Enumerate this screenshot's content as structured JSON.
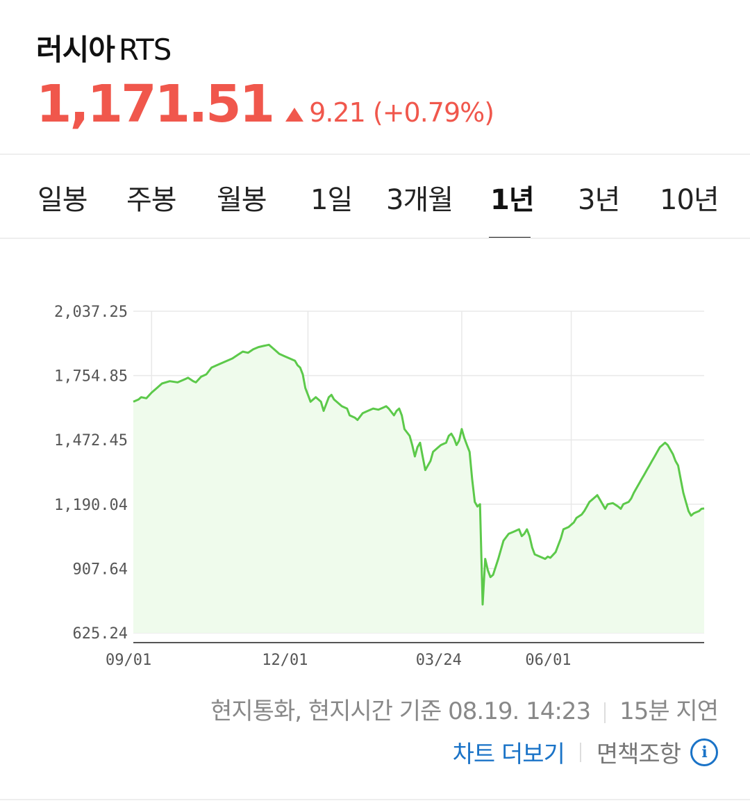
{
  "header": {
    "title": "러시아",
    "title_code": "RTS",
    "price": "1,171.51",
    "change_value": "9.21",
    "change_percent": "(+0.79%)",
    "up_color": "#f0574c"
  },
  "tabs": [
    {
      "label": "일봉",
      "active": false
    },
    {
      "label": "주봉",
      "active": false
    },
    {
      "label": "월봉",
      "active": false
    },
    {
      "label": "1일",
      "active": false
    },
    {
      "label": "3개월",
      "active": false
    },
    {
      "label": "1년",
      "active": true
    },
    {
      "label": "3년",
      "active": false
    },
    {
      "label": "10년",
      "active": false
    }
  ],
  "chart_data": {
    "type": "area",
    "line_color": "#5cc94a",
    "fill_color": "#effbec",
    "grid": true,
    "ylim": [
      625.24,
      2037.25
    ],
    "y_ticks": [
      "2,037.25",
      "1,754.85",
      "1,472.45",
      "1,190.04",
      "907.64",
      "625.24"
    ],
    "y_tick_values": [
      2037.25,
      1754.85,
      1472.45,
      1190.04,
      907.64,
      625.24
    ],
    "x_ticks": [
      {
        "label": "09/01",
        "index": 7
      },
      {
        "label": "12/01",
        "index": 67
      },
      {
        "label": "03/24",
        "index": 126
      },
      {
        "label": "06/01",
        "index": 168
      }
    ],
    "n_points": 220,
    "points": [
      [
        0,
        1640
      ],
      [
        2,
        1650
      ],
      [
        3,
        1660
      ],
      [
        5,
        1655
      ],
      [
        7,
        1680
      ],
      [
        9,
        1700
      ],
      [
        11,
        1720
      ],
      [
        14,
        1730
      ],
      [
        17,
        1725
      ],
      [
        20,
        1740
      ],
      [
        21,
        1745
      ],
      [
        23,
        1730
      ],
      [
        24,
        1725
      ],
      [
        26,
        1750
      ],
      [
        28,
        1760
      ],
      [
        30,
        1790
      ],
      [
        32,
        1800
      ],
      [
        34,
        1810
      ],
      [
        36,
        1820
      ],
      [
        38,
        1830
      ],
      [
        40,
        1845
      ],
      [
        42,
        1860
      ],
      [
        44,
        1855
      ],
      [
        46,
        1870
      ],
      [
        48,
        1880
      ],
      [
        50,
        1885
      ],
      [
        52,
        1890
      ],
      [
        54,
        1870
      ],
      [
        56,
        1850
      ],
      [
        58,
        1840
      ],
      [
        60,
        1830
      ],
      [
        62,
        1820
      ],
      [
        63,
        1800
      ],
      [
        64,
        1790
      ],
      [
        65,
        1760
      ],
      [
        66,
        1700
      ],
      [
        67,
        1670
      ],
      [
        68,
        1640
      ],
      [
        70,
        1660
      ],
      [
        72,
        1640
      ],
      [
        73,
        1600
      ],
      [
        74,
        1630
      ],
      [
        75,
        1660
      ],
      [
        76,
        1670
      ],
      [
        77,
        1650
      ],
      [
        78,
        1640
      ],
      [
        80,
        1620
      ],
      [
        82,
        1610
      ],
      [
        83,
        1580
      ],
      [
        85,
        1570
      ],
      [
        86,
        1560
      ],
      [
        88,
        1590
      ],
      [
        90,
        1600
      ],
      [
        92,
        1610
      ],
      [
        94,
        1605
      ],
      [
        96,
        1615
      ],
      [
        97,
        1620
      ],
      [
        98,
        1610
      ],
      [
        100,
        1580
      ],
      [
        101,
        1600
      ],
      [
        102,
        1610
      ],
      [
        103,
        1580
      ],
      [
        104,
        1520
      ],
      [
        106,
        1490
      ],
      [
        107,
        1450
      ],
      [
        108,
        1400
      ],
      [
        109,
        1440
      ],
      [
        110,
        1460
      ],
      [
        111,
        1400
      ],
      [
        112,
        1340
      ],
      [
        113,
        1360
      ],
      [
        114,
        1380
      ],
      [
        115,
        1420
      ],
      [
        117,
        1440
      ],
      [
        118,
        1450
      ],
      [
        120,
        1460
      ],
      [
        121,
        1490
      ],
      [
        122,
        1500
      ],
      [
        123,
        1480
      ],
      [
        124,
        1450
      ],
      [
        125,
        1470
      ],
      [
        126,
        1520
      ],
      [
        127,
        1480
      ],
      [
        128,
        1450
      ],
      [
        129,
        1420
      ],
      [
        130,
        1300
      ],
      [
        131,
        1200
      ],
      [
        132,
        1180
      ],
      [
        133,
        1190
      ],
      [
        134,
        750
      ],
      [
        135,
        950
      ],
      [
        136,
        900
      ],
      [
        137,
        870
      ],
      [
        138,
        880
      ],
      [
        140,
        950
      ],
      [
        142,
        1030
      ],
      [
        144,
        1060
      ],
      [
        146,
        1070
      ],
      [
        148,
        1080
      ],
      [
        149,
        1050
      ],
      [
        150,
        1060
      ],
      [
        151,
        1080
      ],
      [
        152,
        1050
      ],
      [
        153,
        1000
      ],
      [
        154,
        970
      ],
      [
        156,
        960
      ],
      [
        158,
        950
      ],
      [
        159,
        960
      ],
      [
        160,
        955
      ],
      [
        162,
        980
      ],
      [
        164,
        1040
      ],
      [
        165,
        1080
      ],
      [
        167,
        1090
      ],
      [
        168,
        1100
      ],
      [
        169,
        1110
      ],
      [
        170,
        1130
      ],
      [
        172,
        1145
      ],
      [
        173,
        1160
      ],
      [
        174,
        1180
      ],
      [
        175,
        1200
      ],
      [
        176,
        1210
      ],
      [
        177,
        1220
      ],
      [
        178,
        1230
      ],
      [
        179,
        1210
      ],
      [
        180,
        1190
      ],
      [
        181,
        1170
      ],
      [
        182,
        1190
      ],
      [
        184,
        1195
      ],
      [
        186,
        1180
      ],
      [
        187,
        1170
      ],
      [
        188,
        1190
      ],
      [
        190,
        1200
      ],
      [
        191,
        1215
      ],
      [
        192,
        1240
      ],
      [
        193,
        1260
      ],
      [
        194,
        1280
      ],
      [
        195,
        1300
      ],
      [
        196,
        1320
      ],
      [
        197,
        1340
      ],
      [
        198,
        1360
      ],
      [
        199,
        1380
      ],
      [
        200,
        1400
      ],
      [
        201,
        1420
      ],
      [
        202,
        1440
      ],
      [
        203,
        1450
      ],
      [
        204,
        1460
      ],
      [
        205,
        1450
      ],
      [
        206,
        1430
      ],
      [
        207,
        1410
      ],
      [
        208,
        1380
      ],
      [
        209,
        1360
      ],
      [
        210,
        1300
      ],
      [
        211,
        1240
      ],
      [
        212,
        1200
      ],
      [
        213,
        1160
      ],
      [
        214,
        1140
      ],
      [
        215,
        1150
      ],
      [
        216,
        1155
      ],
      [
        217,
        1160
      ],
      [
        218,
        1170
      ],
      [
        219,
        1171.51
      ]
    ]
  },
  "footer": {
    "basis_text": "현지통화, 현지시간 기준 08.19. 14:23",
    "delay_text": "15분 지연",
    "more_chart": "차트 더보기",
    "disclaimer": "면책조항",
    "info_symbol": "i",
    "link_color": "#1a73c7"
  }
}
